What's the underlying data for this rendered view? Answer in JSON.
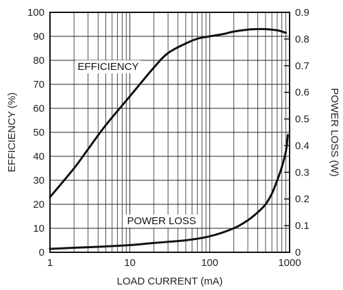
{
  "chart_data": {
    "type": "line",
    "title": "",
    "xlabel": "LOAD CURRENT (mA)",
    "ylabel": "EFFICIENCY (%)",
    "y2label": "POWER LOSS (W)",
    "x_scale": "log",
    "xlim": [
      1,
      1000
    ],
    "ylim": [
      0,
      100
    ],
    "y2lim": [
      0,
      0.9
    ],
    "grid": true,
    "x_ticks": [
      "1",
      "10",
      "100",
      "1000"
    ],
    "y_ticks": [
      "0",
      "10",
      "20",
      "30",
      "40",
      "50",
      "60",
      "70",
      "80",
      "90",
      "100"
    ],
    "y2_ticks": [
      "0",
      "0.1",
      "0.2",
      "0.3",
      "0.4",
      "0.5",
      "0.6",
      "0.7",
      "0.8",
      "0.9"
    ],
    "series": [
      {
        "name": "EFFICIENCY",
        "axis": "left",
        "x": [
          1,
          2,
          3,
          5,
          10,
          20,
          30,
          50,
          70,
          100,
          150,
          200,
          300,
          400,
          500,
          700,
          900
        ],
        "y": [
          23,
          35,
          43,
          53,
          65,
          77,
          83,
          87,
          89,
          90,
          91,
          92,
          92.8,
          93,
          93,
          92.5,
          91.5
        ]
      },
      {
        "name": "POWER LOSS",
        "axis": "right",
        "x": [
          1,
          2,
          5,
          10,
          20,
          50,
          100,
          200,
          300,
          400,
          500,
          600,
          700,
          800,
          900,
          950
        ],
        "y": [
          0.013,
          0.017,
          0.022,
          0.027,
          0.035,
          0.045,
          0.06,
          0.09,
          0.12,
          0.15,
          0.18,
          0.22,
          0.27,
          0.32,
          0.38,
          0.44
        ]
      }
    ],
    "annotations": [
      {
        "text": "EFFICIENCY",
        "series": "EFFICIENCY"
      },
      {
        "text": "POWER LOSS",
        "series": "POWER LOSS"
      }
    ]
  }
}
